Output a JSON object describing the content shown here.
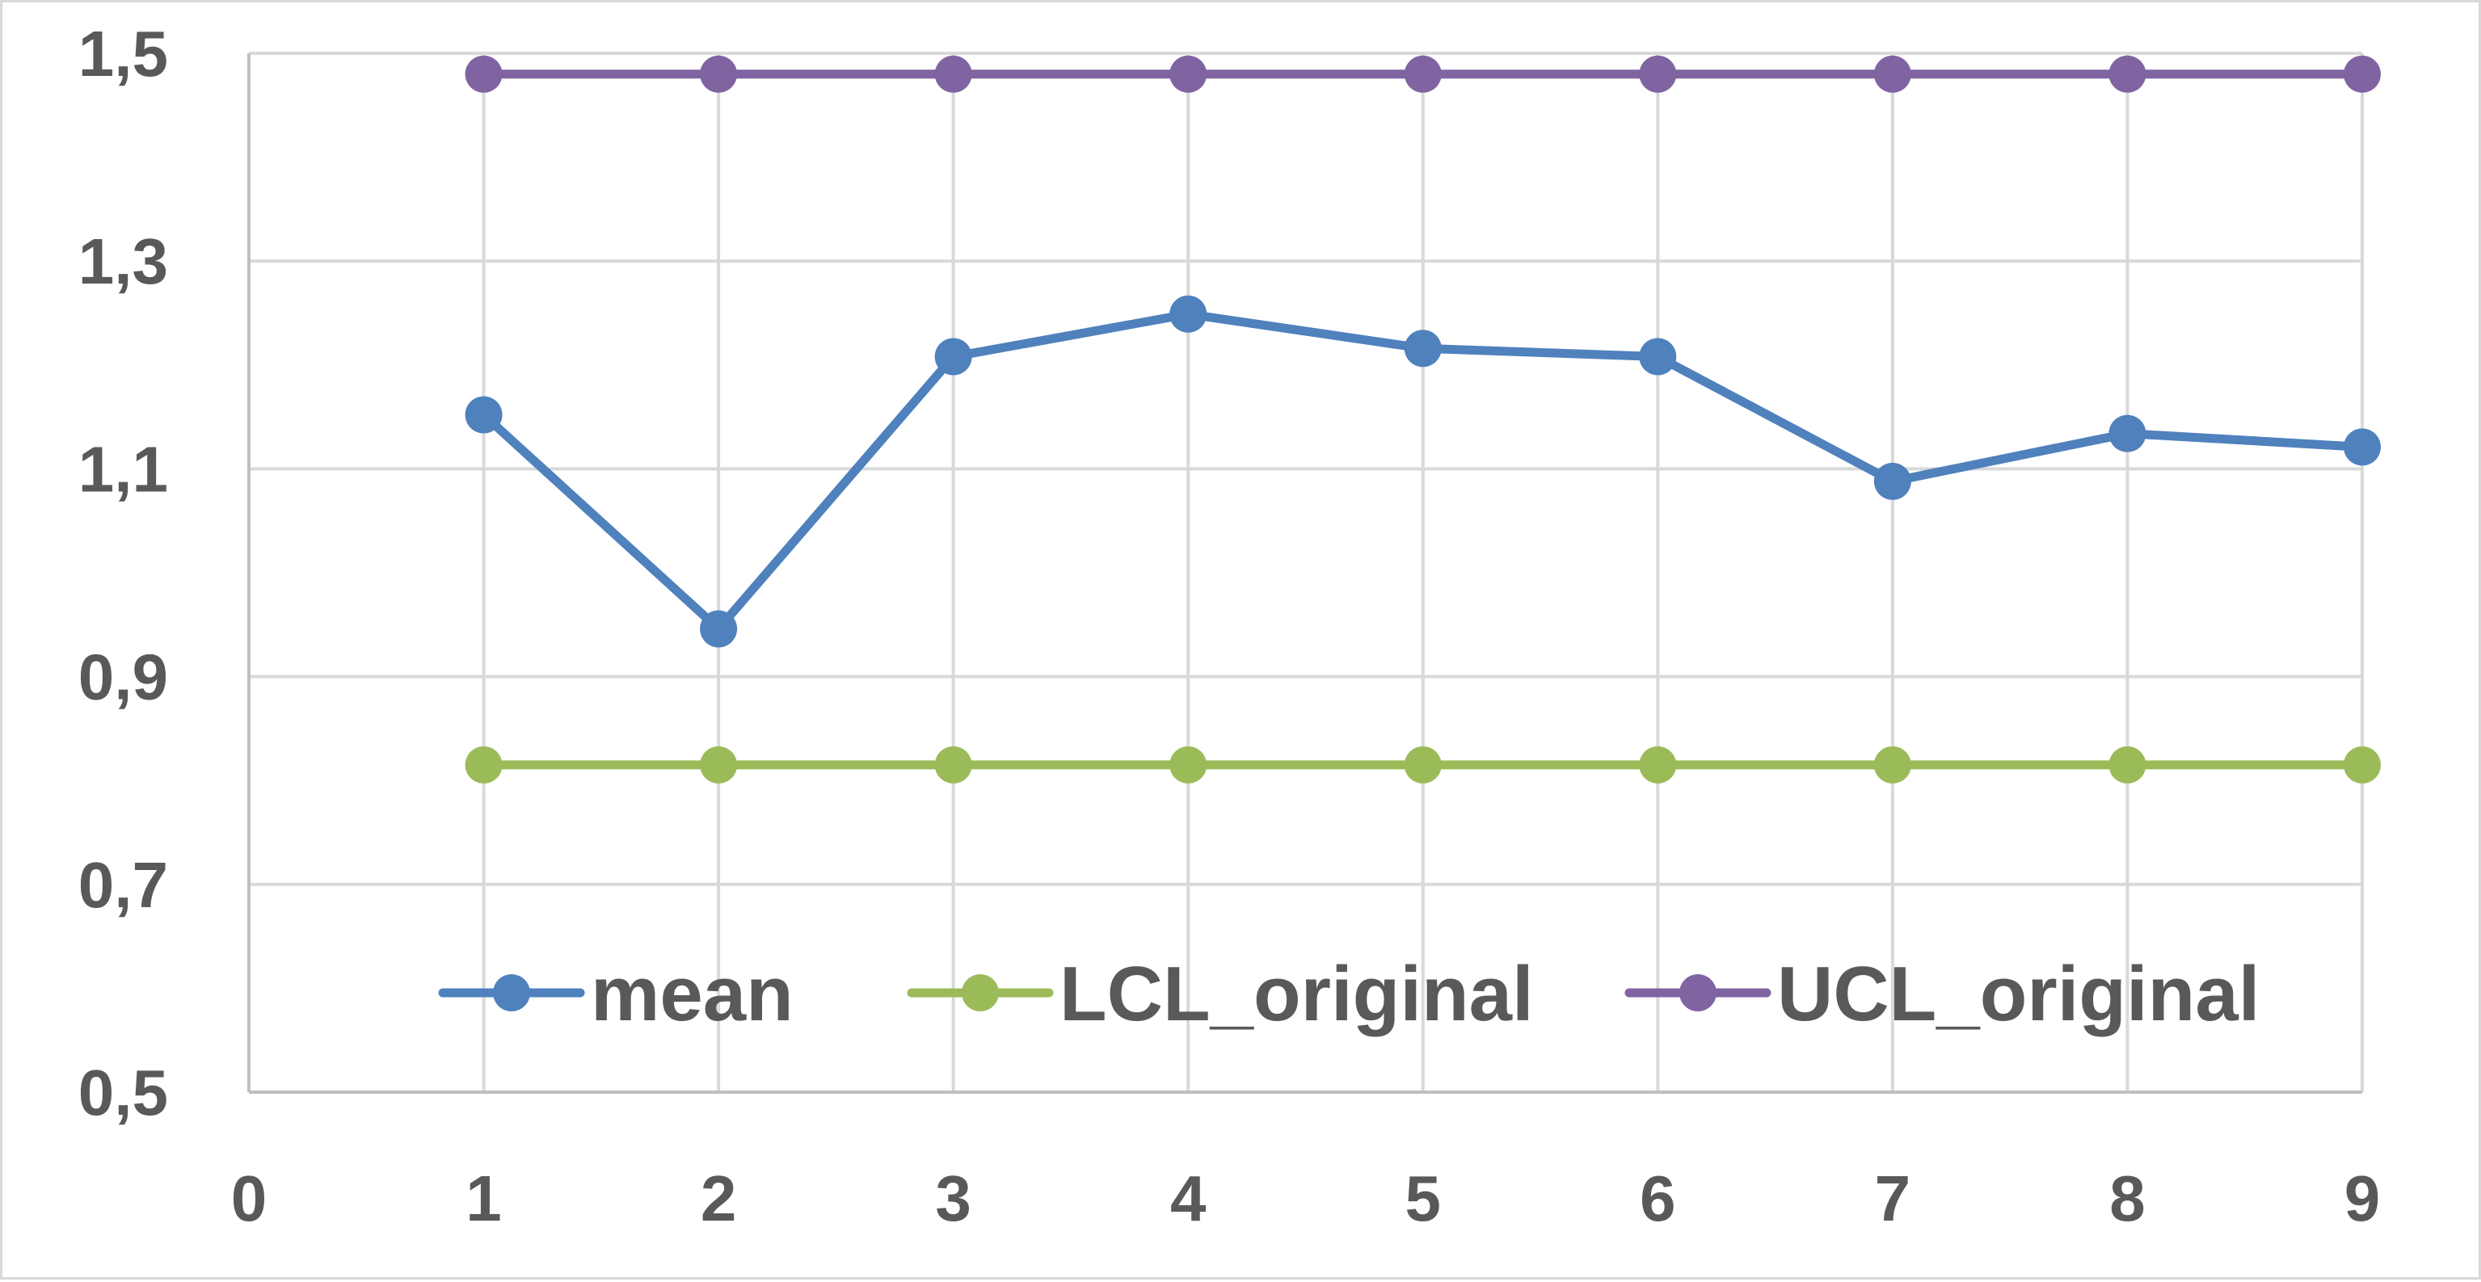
{
  "chart_data": {
    "type": "line",
    "title": "",
    "xlabel": "",
    "ylabel": "",
    "x": [
      1,
      2,
      3,
      4,
      5,
      6,
      7,
      8,
      9
    ],
    "xlim": [
      0,
      9
    ],
    "ylim": [
      0.5,
      1.5
    ],
    "x_ticks": [
      "0",
      "1",
      "2",
      "3",
      "4",
      "5",
      "6",
      "7",
      "8",
      "9"
    ],
    "y_ticks": [
      "1,5",
      "1,3",
      "1,1",
      "0,9",
      "0,7",
      "0,5"
    ],
    "grid": true,
    "legend_position": "bottom-inside",
    "series": [
      {
        "name": "mean",
        "color": "#4f81bd",
        "values": [
          1.152,
          0.946,
          1.208,
          1.249,
          1.216,
          1.208,
          1.088,
          1.134,
          1.121
        ]
      },
      {
        "name": "LCL_original",
        "color": "#9bbb59",
        "values": [
          0.815,
          0.815,
          0.815,
          0.815,
          0.815,
          0.815,
          0.815,
          0.815,
          0.815
        ]
      },
      {
        "name": "UCL_original",
        "color": "#8064a2",
        "values": [
          1.48,
          1.48,
          1.48,
          1.48,
          1.48,
          1.48,
          1.48,
          1.48,
          1.48
        ]
      }
    ]
  }
}
